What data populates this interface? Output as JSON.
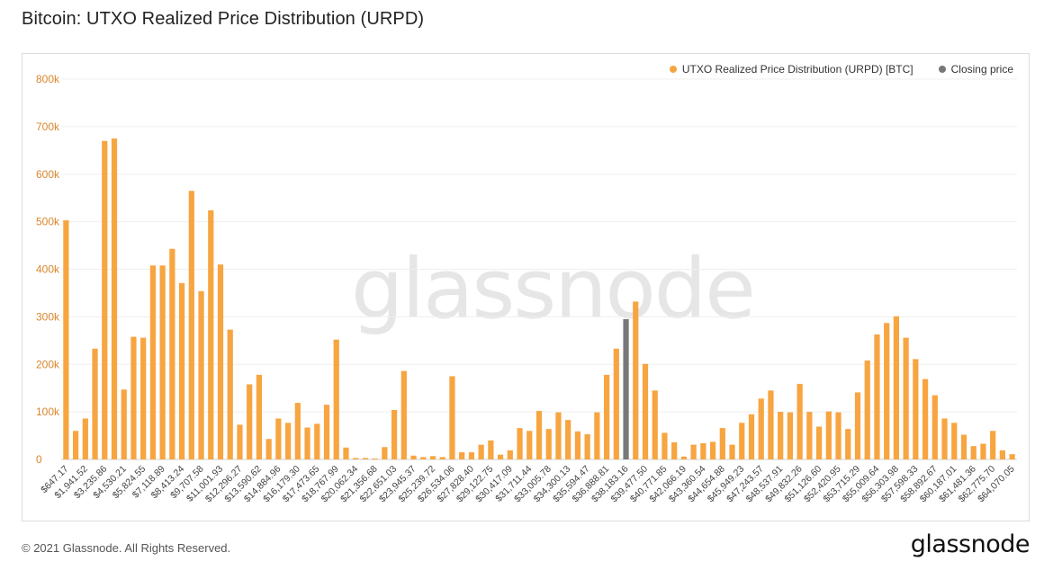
{
  "header": {
    "title": "Bitcoin: UTXO Realized Price Distribution (URPD)"
  },
  "watermark": "glassnode",
  "footer": {
    "copyright": "© 2021 Glassnode. All Rights Reserved.",
    "logo": "glassnode"
  },
  "colors": {
    "series": "#f7a541",
    "closing": "#787878",
    "axis_text": "#d9862a",
    "tick_text": "#444444",
    "grid": "#efefef"
  },
  "chart_data": {
    "type": "bar",
    "title": "Bitcoin: UTXO Realized Price Distribution (URPD)",
    "xlabel": "",
    "ylabel": "",
    "ylim": [
      0,
      800000
    ],
    "yticks": [
      0,
      100000,
      200000,
      300000,
      400000,
      500000,
      600000,
      700000,
      800000
    ],
    "ytick_labels": [
      "0",
      "100k",
      "200k",
      "300k",
      "400k",
      "500k",
      "600k",
      "700k",
      "800k"
    ],
    "grid": true,
    "legend_position": "top-right",
    "legend": [
      {
        "name": "UTXO Realized Price Distribution (URPD) [BTC]",
        "color": "#f7a541"
      },
      {
        "name": "Closing price",
        "color": "#787878"
      }
    ],
    "closing_price_index": 58,
    "x_tick_labels": [
      "$647.17",
      "$1,941.52",
      "$3,235.86",
      "$4,530.21",
      "$5,824.55",
      "$7,118.89",
      "$8,413.24",
      "$9,707.58",
      "$11,001.93",
      "$12,296.27",
      "$13,590.62",
      "$14,884.96",
      "$16,179.30",
      "$17,473.65",
      "$18,767.99",
      "$20,062.34",
      "$21,356.68",
      "$22,651.03",
      "$23,945.37",
      "$25,239.72",
      "$26,534.06",
      "$27,828.40",
      "$29,122.75",
      "$30,417.09",
      "$31,711.44",
      "$33,005.78",
      "$34,300.13",
      "$35,594.47",
      "$36,888.81",
      "$38,183.16",
      "$39,477.50",
      "$40,771.85",
      "$42,066.19",
      "$43,360.54",
      "$44,654.88",
      "$45,949.23",
      "$47,243.57",
      "$48,537.91",
      "$49,832.26",
      "$51,126.60",
      "$52,420.95",
      "$53,715.29",
      "$55,009.64",
      "$56,303.98",
      "$57,598.33",
      "$58,892.67",
      "$60,187.01",
      "$61,481.36",
      "$62,775.70",
      "$64,070.05"
    ],
    "values": [
      503000,
      60000,
      86000,
      233000,
      670000,
      675000,
      147000,
      258000,
      256000,
      408000,
      408000,
      443000,
      371000,
      565000,
      354000,
      524000,
      410000,
      273000,
      73000,
      158000,
      178000,
      43000,
      86000,
      77000,
      119000,
      67000,
      75000,
      115000,
      252000,
      25000,
      3000,
      3000,
      2000,
      26000,
      104000,
      186000,
      8000,
      5000,
      7000,
      5000,
      175000,
      15000,
      15000,
      31000,
      40000,
      10000,
      19000,
      66000,
      60000,
      102000,
      64000,
      99000,
      83000,
      59000,
      53000,
      99000,
      178000,
      233000,
      295000,
      332000,
      201000,
      145000,
      56000,
      36000,
      6000,
      31000,
      34000,
      37000,
      66000,
      31000,
      77000,
      95000,
      128000,
      145000,
      100000,
      99000,
      159000,
      100000,
      69000,
      101000,
      99000,
      64000,
      141000,
      208000,
      263000,
      287000,
      301000,
      256000,
      211000,
      169000,
      135000,
      86000,
      77000,
      52000,
      28000,
      33000,
      60000,
      19000,
      11000
    ]
  }
}
